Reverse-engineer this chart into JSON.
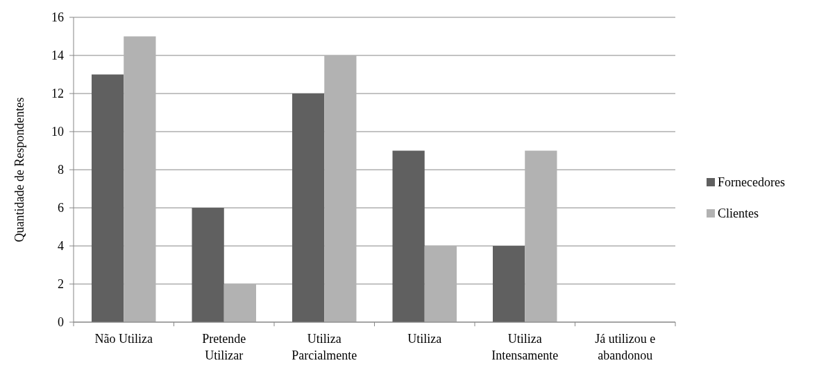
{
  "chart_data": {
    "type": "bar",
    "ylabel": "Quantidade de Respondentes",
    "categories": [
      "Não Utiliza",
      "Pretende Utilizar",
      "Utiliza Parcialmente",
      "Utiliza",
      "Utiliza Intensamente",
      "Já utilizou e abandonou"
    ],
    "series": [
      {
        "name": "Fornecedores",
        "color": "#606060",
        "values": [
          13,
          6,
          12,
          9,
          4,
          0
        ]
      },
      {
        "name": "Clientes",
        "color": "#b2b2b2",
        "values": [
          15,
          2,
          14,
          4,
          9,
          0
        ]
      }
    ],
    "ylim": [
      0,
      16
    ],
    "yticks": [
      0,
      2,
      4,
      6,
      8,
      10,
      12,
      14,
      16
    ],
    "grid": "y",
    "legend": "right"
  }
}
